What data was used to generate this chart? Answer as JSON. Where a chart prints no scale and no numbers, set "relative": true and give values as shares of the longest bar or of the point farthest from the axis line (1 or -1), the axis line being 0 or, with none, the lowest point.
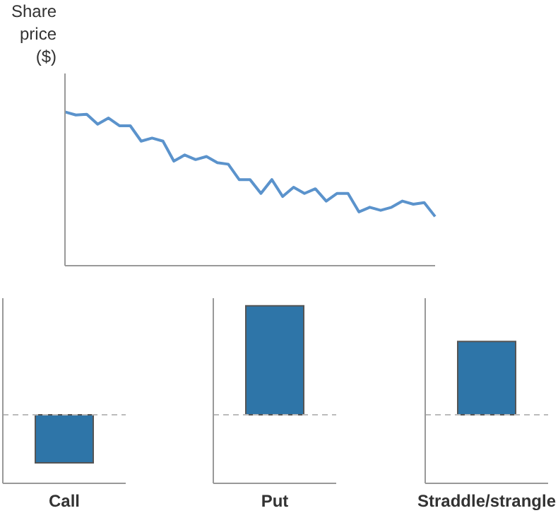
{
  "chart_data": [
    {
      "type": "line",
      "relative": true,
      "ylabel": "Share price ($)",
      "color": "#5b93cc",
      "categories": [
        null,
        null,
        null,
        null,
        null,
        null,
        null,
        null,
        null,
        null,
        null,
        null,
        null,
        null,
        null,
        null,
        null,
        null,
        null,
        null,
        null,
        null,
        null,
        null,
        null,
        null,
        null,
        null,
        null,
        null,
        null,
        null,
        null,
        null,
        null
      ],
      "values": [
        1,
        0.98,
        0.985,
        0.92,
        0.96,
        0.91,
        0.91,
        0.81,
        0.83,
        0.81,
        0.68,
        0.72,
        0.69,
        0.71,
        0.67,
        0.66,
        0.56,
        0.56,
        0.47,
        0.56,
        0.45,
        0.51,
        0.47,
        0.5,
        0.42,
        0.47,
        0.47,
        0.35,
        0.38,
        0.36,
        0.38,
        0.42,
        0.4,
        0.41,
        0.32
      ]
    },
    {
      "type": "bar",
      "relative": true,
      "categories": [
        "Call"
      ],
      "values": [
        -1
      ],
      "color": "#2e75a8",
      "ref_lines": [
        {
          "axis": "y",
          "value": 0,
          "line_style": "dashed",
          "color": "#bbbbbb"
        }
      ]
    },
    {
      "type": "bar",
      "relative": true,
      "categories": [
        "Put"
      ],
      "values": [
        1
      ],
      "color": "#2e75a8",
      "ref_lines": [
        {
          "axis": "y",
          "value": 0,
          "line_style": "dashed",
          "color": "#bbbbbb"
        }
      ]
    },
    {
      "type": "bar",
      "relative": true,
      "categories": [
        "Straddle/strangle"
      ],
      "values": [
        1
      ],
      "color": "#2e75a8",
      "ref_lines": [
        {
          "axis": "y",
          "value": 0,
          "line_style": "dashed",
          "color": "#bbbbbb"
        }
      ]
    }
  ]
}
